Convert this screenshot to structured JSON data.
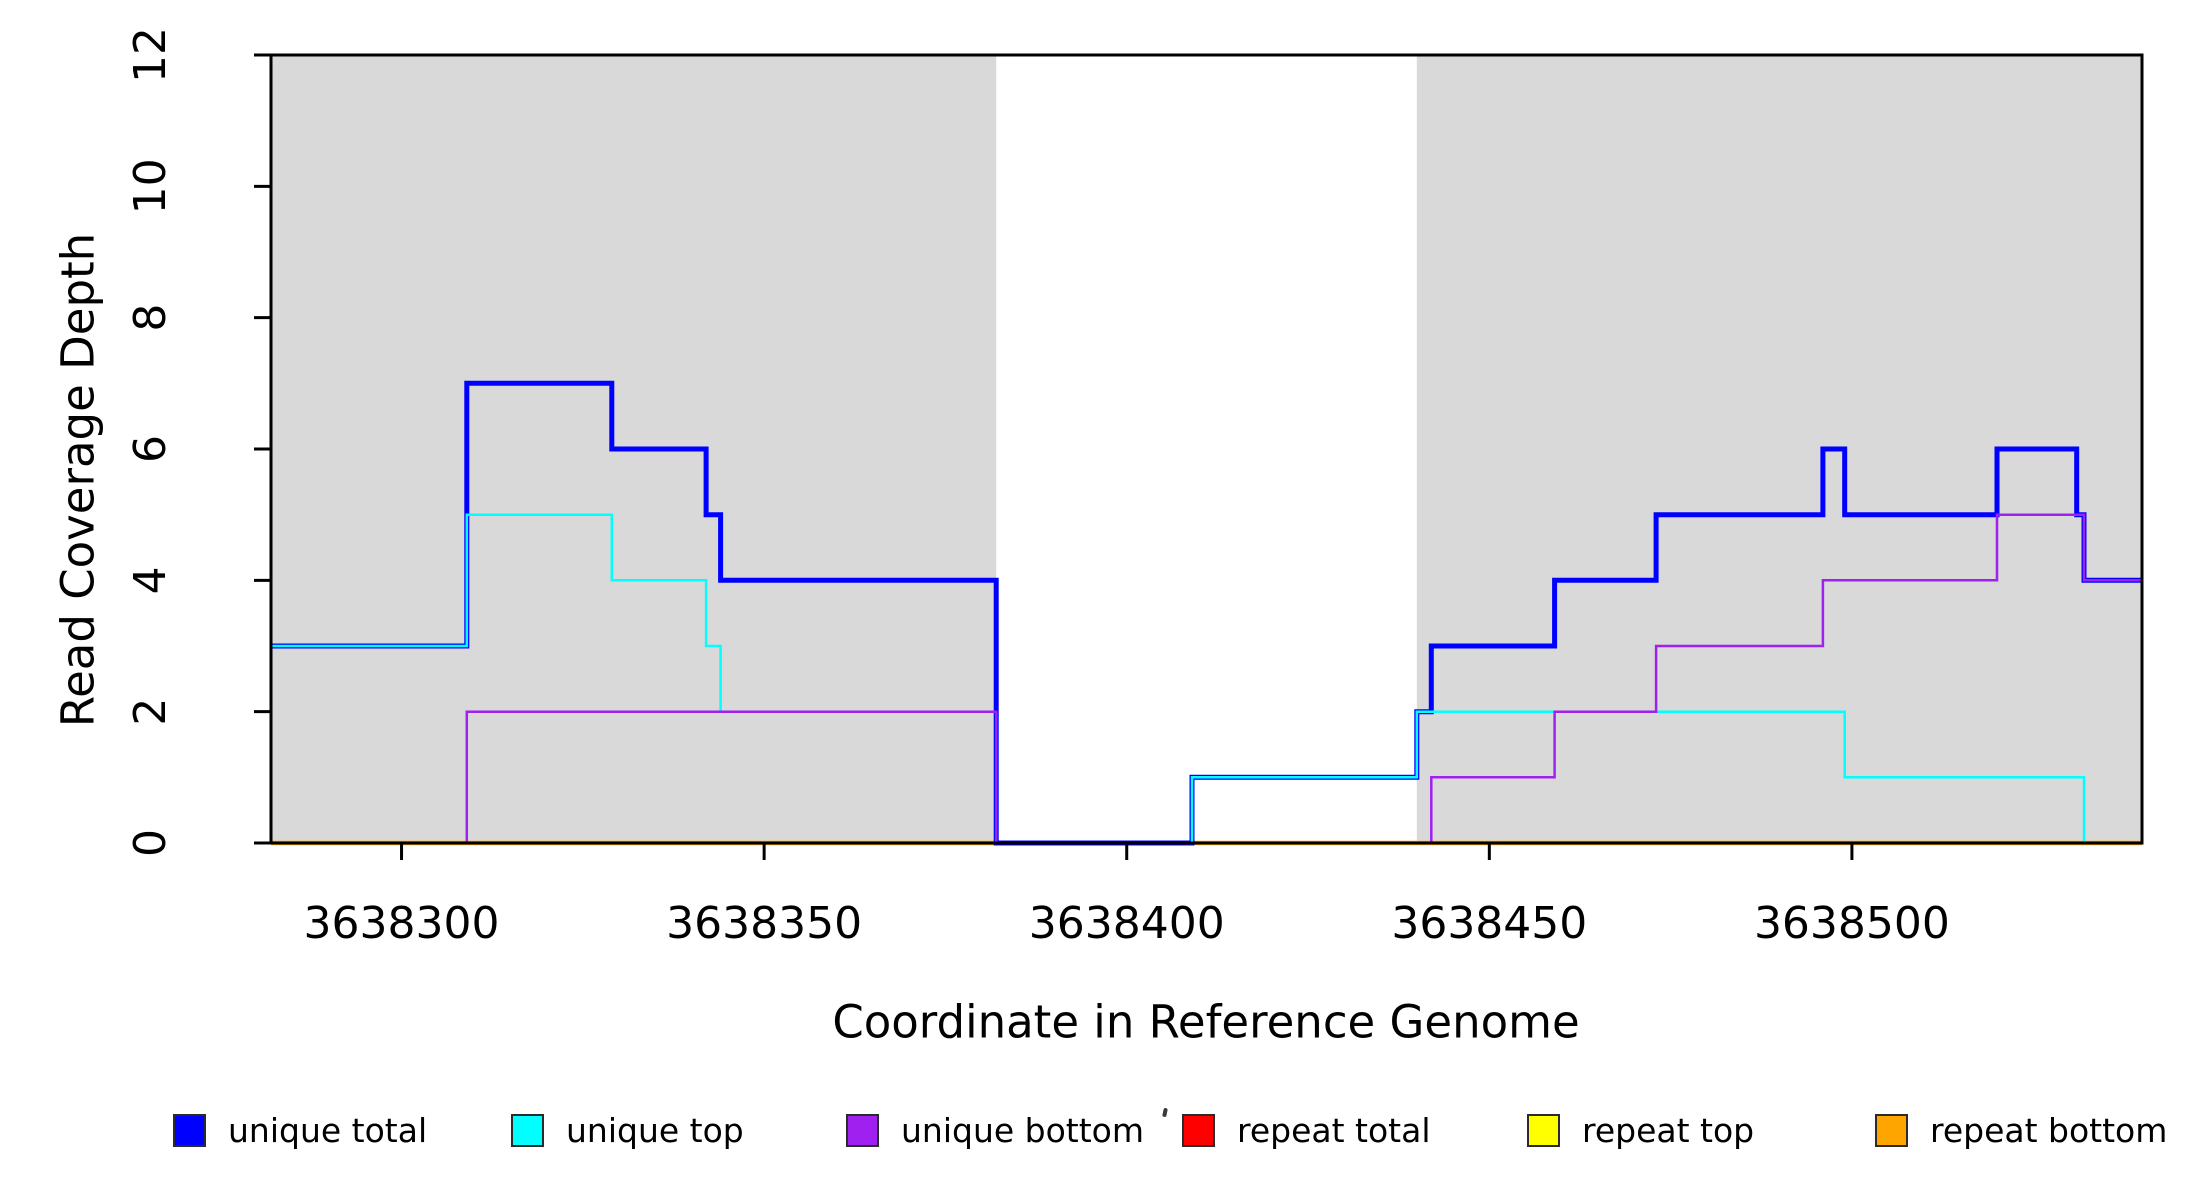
{
  "axis_titles": {
    "x": "Coordinate in Reference Genome",
    "y": "Read Coverage Depth"
  },
  "x_axis": {
    "tick_labels": [
      "3638300",
      "3638350",
      "3638400",
      "3638450",
      "3638500"
    ],
    "tick_values": [
      3638300,
      3638350,
      3638400,
      3638450,
      3638500
    ]
  },
  "y_axis": {
    "tick_labels": [
      "0",
      "2",
      "4",
      "6",
      "8",
      "10",
      "12"
    ],
    "tick_values": [
      0,
      2,
      4,
      6,
      8,
      10,
      12
    ]
  },
  "colors": {
    "background": "#FFFFFF",
    "axis": "#000000",
    "shaded_block": "#D9D9D9",
    "unique_total": "#0000FF",
    "unique_top": "#00FFFF",
    "unique_bottom": "#A020F0",
    "repeat_total": "#FF0000",
    "repeat_top": "#FFFF00",
    "repeat_bottom": "#FFA500"
  },
  "chart_data": {
    "type": "line",
    "subtype": "step-coverage",
    "title": "",
    "xlabel": "Coordinate in Reference Genome",
    "ylabel": "Read Coverage Depth",
    "xlim": [
      3638282,
      3638540
    ],
    "ylim": [
      0,
      12
    ],
    "grid": false,
    "legend_position": "bottom",
    "shaded_blocks": [
      {
        "from": 3638282,
        "to": 3638382
      },
      {
        "from": 3638440,
        "to": 3638540
      }
    ],
    "series": [
      {
        "name": "unique total",
        "color": "#0000FF",
        "line_width": 5,
        "steps": [
          [
            3638282,
            3
          ],
          [
            3638309,
            7
          ],
          [
            3638329,
            6
          ],
          [
            3638342,
            5
          ],
          [
            3638344,
            4
          ],
          [
            3638382,
            0
          ],
          [
            3638409,
            1
          ],
          [
            3638440,
            2
          ],
          [
            3638442,
            3
          ],
          [
            3638459,
            4
          ],
          [
            3638473,
            5
          ],
          [
            3638496,
            6
          ],
          [
            3638499,
            5
          ],
          [
            3638520,
            6
          ],
          [
            3638531,
            5
          ],
          [
            3638532,
            4
          ],
          [
            3638540,
            4
          ]
        ]
      },
      {
        "name": "unique top",
        "color": "#00FFFF",
        "line_width": 2.5,
        "steps": [
          [
            3638282,
            3
          ],
          [
            3638309,
            5
          ],
          [
            3638329,
            4
          ],
          [
            3638342,
            3
          ],
          [
            3638344,
            2
          ],
          [
            3638382,
            0
          ],
          [
            3638409,
            1
          ],
          [
            3638440,
            2
          ],
          [
            3638499,
            1
          ],
          [
            3638532,
            0
          ],
          [
            3638540,
            0
          ]
        ]
      },
      {
        "name": "unique bottom",
        "color": "#A020F0",
        "line_width": 2.5,
        "steps": [
          [
            3638282,
            0
          ],
          [
            3638309,
            2
          ],
          [
            3638382,
            0
          ],
          [
            3638442,
            1
          ],
          [
            3638459,
            2
          ],
          [
            3638473,
            3
          ],
          [
            3638496,
            4
          ],
          [
            3638520,
            5
          ],
          [
            3638532,
            4
          ],
          [
            3638540,
            4
          ]
        ]
      },
      {
        "name": "repeat total",
        "color": "#FF0000",
        "line_width": 2.5,
        "steps": [
          [
            3638282,
            0
          ],
          [
            3638540,
            0
          ]
        ]
      },
      {
        "name": "repeat top",
        "color": "#FFFF00",
        "line_width": 2.5,
        "steps": [
          [
            3638282,
            0
          ],
          [
            3638540,
            0
          ]
        ]
      },
      {
        "name": "repeat bottom",
        "color": "#FFA500",
        "line_width": 4.5,
        "steps": [
          [
            3638282,
            0
          ],
          [
            3638540,
            0
          ]
        ]
      }
    ],
    "baseline_overlays": [
      {
        "color": "#FF0000",
        "from": 3638409,
        "to": 3638440,
        "y": 0,
        "line_width": 2.5
      }
    ]
  },
  "legend": {
    "items": [
      {
        "label": "unique total",
        "color": "#0000FF"
      },
      {
        "label": "unique top",
        "color": "#00FFFF"
      },
      {
        "label": "unique bottom",
        "color": "#A020F0"
      },
      {
        "label": "repeat total",
        "color": "#FF0000"
      },
      {
        "label": "repeat top",
        "color": "#FFFF00"
      },
      {
        "label": "repeat bottom",
        "color": "#FFA500"
      }
    ]
  }
}
